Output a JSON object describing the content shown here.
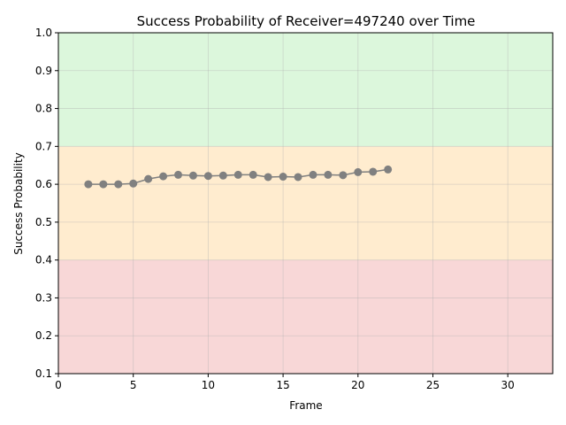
{
  "chart_data": {
    "type": "line",
    "title": "Success Probability of Receiver=497240 over Time",
    "xlabel": "Frame",
    "ylabel": "Success Probability",
    "xlim": [
      0,
      33
    ],
    "ylim": [
      0.1,
      1.0
    ],
    "xticks": [
      0,
      5,
      10,
      15,
      20,
      25,
      30
    ],
    "yticks": [
      0.1,
      0.2,
      0.3,
      0.4,
      0.5,
      0.6,
      0.7,
      0.8,
      0.9,
      1.0
    ],
    "grid": true,
    "bands": [
      {
        "from": 0.1,
        "to": 0.4,
        "color": "#f8d7d7"
      },
      {
        "from": 0.4,
        "to": 0.7,
        "color": "#ffeccf"
      },
      {
        "from": 0.7,
        "to": 1.0,
        "color": "#dcf7dc"
      }
    ],
    "series": [
      {
        "color": "#808080",
        "x": [
          2,
          3,
          4,
          5,
          6,
          7,
          8,
          9,
          10,
          11,
          12,
          13,
          14,
          15,
          16,
          17,
          18,
          19,
          20,
          21,
          22
        ],
        "y": [
          0.6,
          0.6,
          0.6,
          0.602,
          0.614,
          0.621,
          0.625,
          0.623,
          0.622,
          0.623,
          0.625,
          0.625,
          0.619,
          0.62,
          0.619,
          0.625,
          0.625,
          0.624,
          0.632,
          0.633,
          0.639
        ]
      }
    ]
  }
}
